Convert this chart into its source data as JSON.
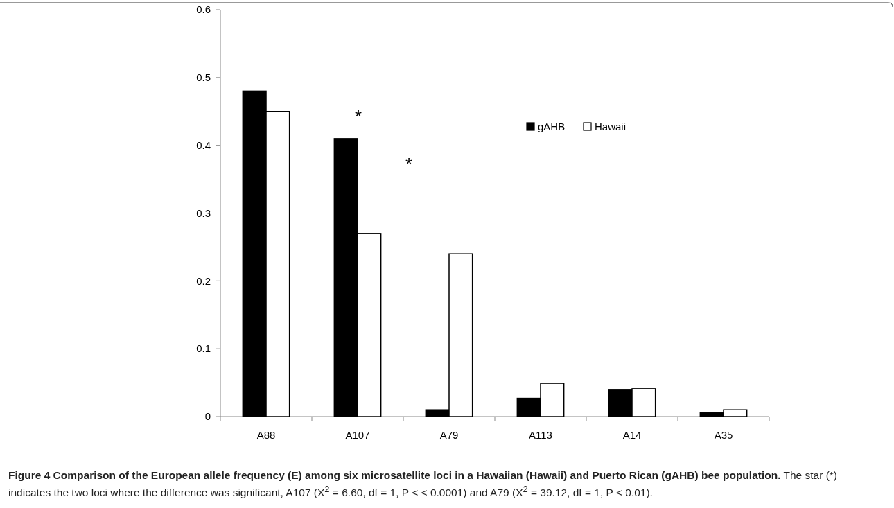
{
  "chart_data": {
    "type": "bar",
    "title": "Figure 4 Comparison of the European allele frequency (E) among six microsatellite loci in a Hawaiian (Hawaii) and Puerto Rican (gAHB) bee population.",
    "categories": [
      "A88",
      "A107",
      "A79",
      "A113",
      "A14",
      "A35"
    ],
    "series": [
      {
        "name": "gAHB",
        "color": "#000000",
        "values": [
          0.48,
          0.41,
          0.01,
          0.027,
          0.039,
          0.006
        ]
      },
      {
        "name": "Hawaii",
        "color": "#ffffff",
        "values": [
          0.45,
          0.27,
          0.24,
          0.049,
          0.041,
          0.01
        ]
      }
    ],
    "ylim": [
      0,
      0.6
    ],
    "yticks": [
      {
        "value": 0,
        "label": "0"
      },
      0.1,
      0.2,
      0.3,
      0.4,
      0.5,
      0.6
    ],
    "legend": "top right",
    "grid": false,
    "annotations": [
      "*",
      "*",
      "The star (*) indicates the two loci where the difference was significant, A107 (X$^{2}$ = 6.60, df = 1, P < < 0.0001) and A79 (X$^{2}$ = 39.12, df = 1, P < 0.01)."
    ]
  }
}
